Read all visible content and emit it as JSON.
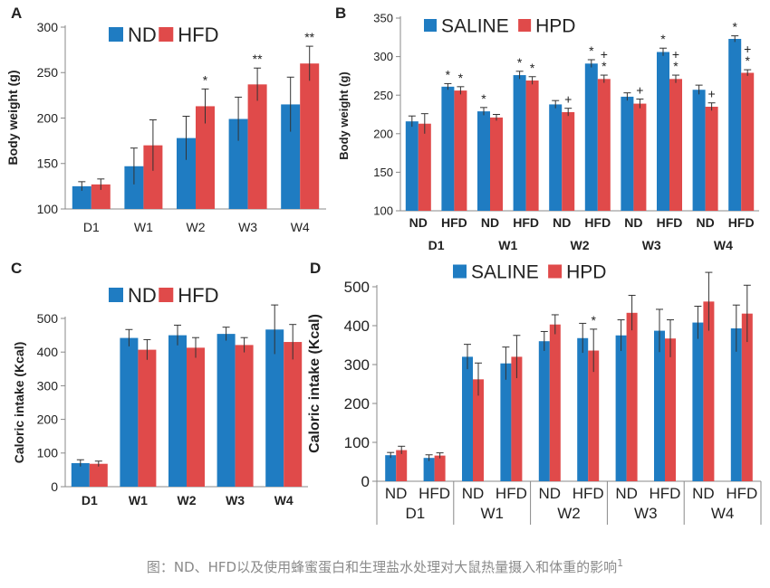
{
  "colors": {
    "nd": "#1f7cc2",
    "hfd": "#e04a4a",
    "axis": "#888888",
    "text": "#222222"
  },
  "chart_data": [
    {
      "panel": "A",
      "type": "bar",
      "title": "",
      "ylabel": "Body weight (g)",
      "ylim": [
        100,
        300
      ],
      "yticks": [
        100,
        150,
        200,
        250,
        300
      ],
      "categories": [
        "D1",
        "W1",
        "W2",
        "W3",
        "W4"
      ],
      "legend_position": "top-center",
      "series": [
        {
          "name": "ND",
          "values": [
            125,
            147,
            178,
            199,
            215
          ],
          "errors": [
            5,
            20,
            24,
            24,
            30
          ],
          "marks": [
            "",
            "",
            "",
            "",
            ""
          ]
        },
        {
          "name": "HFD",
          "values": [
            127,
            170,
            213,
            237,
            260
          ],
          "errors": [
            6,
            28,
            19,
            18,
            19
          ],
          "marks": [
            "",
            "",
            "*",
            "**",
            "**"
          ]
        }
      ]
    },
    {
      "panel": "B",
      "type": "bar",
      "title": "",
      "ylabel": "Body weight (g)",
      "ylim": [
        100,
        350
      ],
      "yticks": [
        100,
        150,
        200,
        250,
        300,
        350
      ],
      "categories": [
        "D1",
        "W1",
        "W2",
        "W3",
        "W4"
      ],
      "sub_labels": [
        "ND",
        "HFD"
      ],
      "legend_position": "top-center",
      "series": [
        {
          "name": "SALINE",
          "values": [
            216,
            229,
            238,
            248,
            257
          ],
          "errors": [
            7,
            5,
            5,
            5,
            6
          ],
          "marks": [
            "",
            "*",
            "",
            "",
            ""
          ]
        },
        {
          "name": "HPD",
          "values": [
            213,
            221,
            228,
            239,
            235
          ],
          "errors": [
            13,
            4,
            5,
            6,
            5
          ],
          "marks": [
            "",
            "",
            "+",
            "+",
            "+"
          ]
        },
        {
          "name": "SALINE",
          "values": [
            261,
            276,
            291,
            306,
            323
          ],
          "errors": [
            4,
            5,
            5,
            5,
            4
          ],
          "marks": [
            "*",
            "*",
            "*",
            "*",
            "*"
          ]
        },
        {
          "name": "HPD",
          "values": [
            256,
            269,
            271,
            271,
            279
          ],
          "errors": [
            5,
            5,
            5,
            5,
            4
          ],
          "marks": [
            "*",
            "*",
            "+\n*",
            "+\n*",
            "+\n*"
          ]
        }
      ]
    },
    {
      "panel": "C",
      "type": "bar",
      "title": "",
      "ylabel": "Caloric intake (Kcal)",
      "ylim": [
        0,
        500
      ],
      "yticks": [
        0,
        100,
        200,
        300,
        400,
        500
      ],
      "categories": [
        "D1",
        "W1",
        "W2",
        "W3",
        "W4"
      ],
      "legend_position": "top-center",
      "series": [
        {
          "name": "ND",
          "values": [
            70,
            442,
            450,
            454,
            467
          ],
          "errors": [
            10,
            25,
            30,
            20,
            73
          ],
          "marks": [
            "",
            "",
            "",
            "",
            ""
          ]
        },
        {
          "name": "HFD",
          "values": [
            68,
            407,
            413,
            421,
            430
          ],
          "errors": [
            8,
            30,
            30,
            22,
            52
          ],
          "marks": [
            "",
            "",
            "",
            "",
            ""
          ]
        }
      ]
    },
    {
      "panel": "D",
      "type": "bar",
      "title": "",
      "ylabel": "Caloric intake (Kcal)",
      "ylim": [
        0,
        500
      ],
      "yticks": [
        0,
        100,
        200,
        300,
        400,
        500
      ],
      "categories": [
        "D1",
        "W1",
        "W2",
        "W3",
        "W4"
      ],
      "sub_labels": [
        "ND",
        "HFD"
      ],
      "legend_position": "top-center",
      "series": [
        {
          "name": "SALINE",
          "values": [
            67,
            320,
            360,
            375,
            408
          ],
          "errors": [
            7,
            32,
            25,
            40,
            42
          ],
          "marks": [
            "",
            "",
            "",
            "",
            ""
          ]
        },
        {
          "name": "HPD",
          "values": [
            80,
            262,
            403,
            433,
            462
          ],
          "errors": [
            10,
            42,
            25,
            45,
            75
          ],
          "marks": [
            "",
            "",
            "",
            "",
            ""
          ]
        },
        {
          "name": "SALINE",
          "values": [
            60,
            303,
            368,
            387,
            393
          ],
          "errors": [
            8,
            42,
            38,
            55,
            60
          ],
          "marks": [
            "",
            "",
            "",
            "",
            ""
          ]
        },
        {
          "name": "HPD",
          "values": [
            66,
            320,
            336,
            367,
            431
          ],
          "errors": [
            7,
            55,
            55,
            48,
            73
          ],
          "marks": [
            "",
            "",
            "*",
            "",
            ""
          ]
        }
      ]
    }
  ],
  "caption": {
    "text": "图：ND、HFD以及使用蜂蜜蛋白和生理盐水处理对大鼠热量摄入和体重的影响",
    "superscript": "1"
  }
}
